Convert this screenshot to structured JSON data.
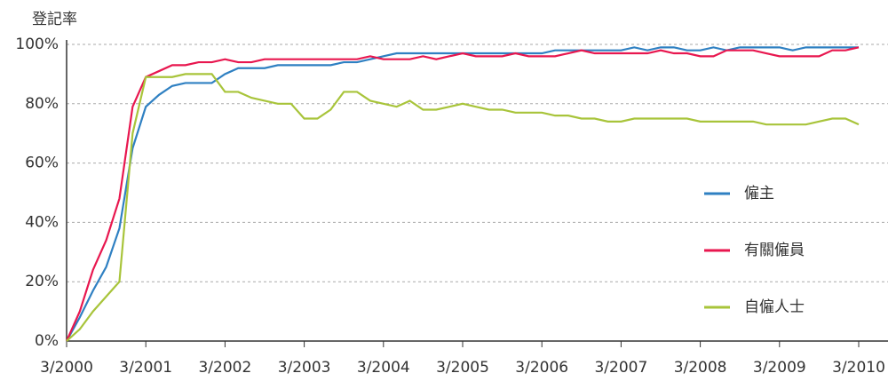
{
  "chart_data": {
    "type": "line",
    "ylabel": "登記率",
    "categories": [
      "3/2000",
      null,
      null,
      null,
      null,
      null,
      "3/2001",
      null,
      null,
      null,
      null,
      null,
      "3/2002",
      null,
      null,
      null,
      null,
      null,
      "3/2003",
      null,
      null,
      null,
      null,
      null,
      "3/2004",
      null,
      null,
      null,
      null,
      null,
      "3/2005",
      null,
      null,
      null,
      null,
      null,
      "3/2006",
      null,
      null,
      null,
      null,
      null,
      "3/2007",
      null,
      null,
      null,
      null,
      null,
      "3/2008",
      null,
      null,
      null,
      null,
      null,
      "3/2009",
      null,
      null,
      null,
      null,
      null,
      "3/2010"
    ],
    "series": [
      {
        "name": "僱主",
        "color": "#2f80c2",
        "values": [
          0,
          8,
          17,
          25,
          38,
          65,
          79,
          83,
          86,
          87,
          87,
          87,
          90,
          92,
          92,
          92,
          93,
          93,
          93,
          93,
          93,
          94,
          94,
          95,
          96,
          97,
          97,
          97,
          97,
          97,
          97,
          97,
          97,
          97,
          97,
          97,
          97,
          98,
          98,
          98,
          98,
          98,
          98,
          99,
          98,
          99,
          99,
          98,
          98,
          99,
          98,
          99,
          99,
          99,
          99,
          98,
          99,
          99,
          99,
          99,
          99
        ]
      },
      {
        "name": "有關僱員",
        "color": "#e8174f",
        "values": [
          0,
          10,
          24,
          34,
          48,
          79,
          89,
          91,
          93,
          93,
          94,
          94,
          95,
          94,
          94,
          95,
          95,
          95,
          95,
          95,
          95,
          95,
          95,
          96,
          95,
          95,
          95,
          96,
          95,
          96,
          97,
          96,
          96,
          96,
          97,
          96,
          96,
          96,
          97,
          98,
          97,
          97,
          97,
          97,
          97,
          98,
          97,
          97,
          96,
          96,
          98,
          98,
          98,
          97,
          96,
          96,
          96,
          96,
          98,
          98,
          99
        ]
      },
      {
        "name": "自僱人士",
        "color": "#a8c43a",
        "values": [
          0,
          4,
          10,
          15,
          20,
          70,
          89,
          89,
          89,
          90,
          90,
          90,
          84,
          84,
          82,
          81,
          80,
          80,
          75,
          75,
          78,
          84,
          84,
          81,
          80,
          79,
          81,
          78,
          78,
          79,
          80,
          79,
          78,
          78,
          77,
          77,
          77,
          76,
          76,
          75,
          75,
          74,
          74,
          75,
          75,
          75,
          75,
          75,
          74,
          74,
          74,
          74,
          74,
          73,
          73,
          73,
          73,
          74,
          75,
          75,
          73
        ]
      }
    ],
    "ylim": [
      0,
      100
    ],
    "yticks": [
      {
        "value": 0,
        "label": "0%"
      },
      {
        "value": 20,
        "label": "20%"
      },
      {
        "value": 40,
        "label": "40%"
      },
      {
        "value": 60,
        "label": "60%"
      },
      {
        "value": 80,
        "label": "80%"
      },
      {
        "value": 100,
        "label": "100%"
      }
    ],
    "grid": true,
    "legend": "right"
  }
}
